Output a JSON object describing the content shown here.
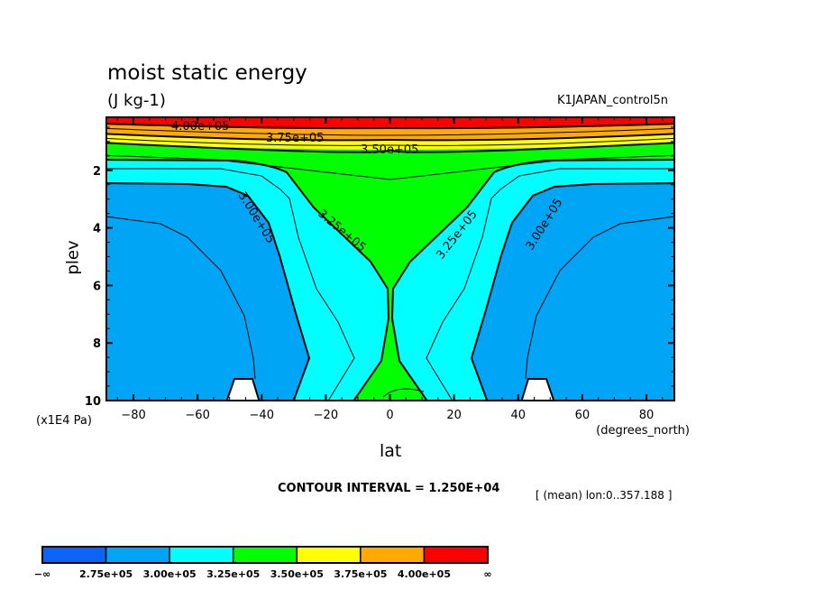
{
  "chart_data": {
    "type": "contour",
    "title": "moist static energy",
    "units": "(J kg-1)",
    "dataset": "K1JAPAN_control5n",
    "xlabel": "lat",
    "xunits": "(degrees_north)",
    "ylabel": "plev",
    "yunits": "(x1E4 Pa)",
    "xlim": [
      -88,
      88
    ],
    "ylim": [
      10,
      0.15
    ],
    "y_reversed": true,
    "x_ticks": [
      -80,
      -60,
      -40,
      -20,
      0,
      20,
      40,
      60,
      80
    ],
    "y_ticks": [
      2,
      4,
      6,
      8,
      10
    ],
    "contour_interval_text": "CONTOUR INTERVAL = 1.250E+04",
    "mean_text": "[ (mean) lon:0..357.188 ]",
    "contour_labels": [
      "4.00e+05",
      "3.75e+05",
      "3.50e+05",
      "3.00e+05",
      "3.25e+05",
      "3.25e+05",
      "3.00e+05"
    ],
    "colorbar": {
      "labels": [
        "−∞",
        "2.75e+05",
        "3.00e+05",
        "3.25e+05",
        "3.50e+05",
        "3.75e+05",
        "4.00e+05",
        "∞"
      ],
      "colors": [
        "#0a64f5",
        "#00a5f5",
        "#00ffff",
        "#00ff00",
        "#ffff00",
        "#ffaa00",
        "#ff0000"
      ]
    },
    "fill_colors": {
      "lt_3.00e5": "#00a5f5",
      "3.00_3.25e5": "#00ffff",
      "3.25_3.50e5": "#00ff00",
      "3.50_3.75e5": "#ffff00",
      "3.75_4.00e5": "#ffaa00",
      "gt_4.00e5": "#ff0000",
      "missing": "#ffffff"
    },
    "grid": false
  }
}
